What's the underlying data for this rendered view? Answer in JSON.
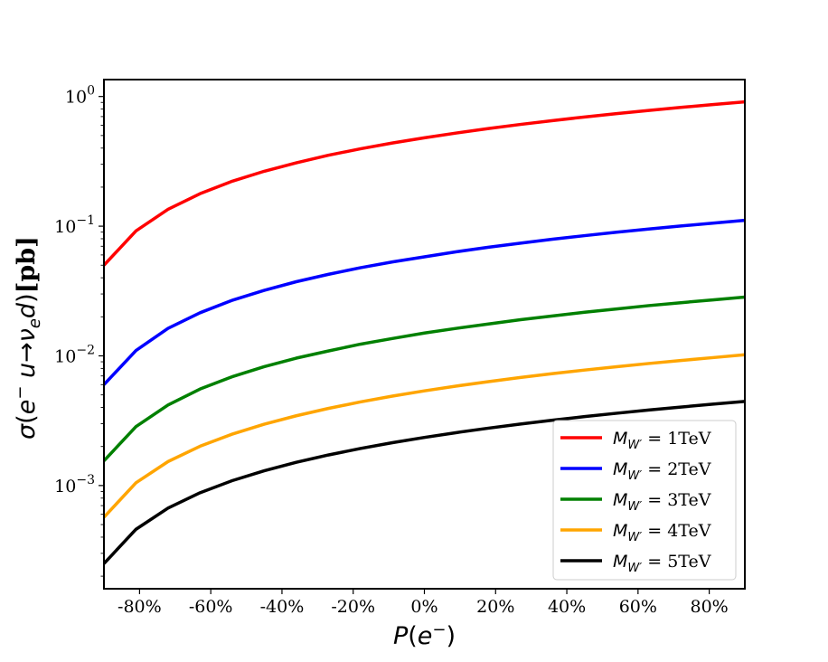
{
  "chart_data": {
    "type": "line",
    "title": "",
    "xlabel": "P(e⁻)",
    "ylabel": "σ(e⁻ u→νₑ d)[pb]",
    "yscale": "log",
    "xlim": [
      -90,
      90
    ],
    "ylim": [
      0.00016,
      1.35
    ],
    "x_ticks": [
      -80,
      -60,
      -40,
      -20,
      0,
      20,
      40,
      60,
      80
    ],
    "x_tick_labels": [
      "-80%",
      "-60%",
      "-40%",
      "-20%",
      "0%",
      "20%",
      "40%",
      "60%",
      "80%"
    ],
    "y_ticks": [
      0.001,
      0.01,
      0.1,
      1
    ],
    "y_tick_labels": [
      {
        "base": "10",
        "exp": "−3"
      },
      {
        "base": "10",
        "exp": "−2"
      },
      {
        "base": "10",
        "exp": "−1"
      },
      {
        "base": "10",
        "exp": "0"
      }
    ],
    "legend_position": "lower-right",
    "x": [
      -90,
      -81,
      -72,
      -63,
      -54,
      -45,
      -36,
      -27,
      -18,
      -9,
      0,
      9,
      18,
      27,
      36,
      45,
      54,
      63,
      72,
      81,
      90
    ],
    "series": [
      {
        "name": "M_W′ = 1TeV",
        "legend_main": "M",
        "legend_sub": "W′",
        "legend_value": " = 1TeV",
        "color": "#ff0000",
        "values": [
          0.05,
          0.092,
          0.135,
          0.178,
          0.222,
          0.265,
          0.308,
          0.352,
          0.395,
          0.438,
          0.48,
          0.523,
          0.566,
          0.609,
          0.652,
          0.695,
          0.738,
          0.781,
          0.824,
          0.867,
          0.91
        ]
      },
      {
        "name": "M_W′ = 2TeV",
        "legend_main": "M",
        "legend_sub": "W′",
        "legend_value": " = 2TeV",
        "color": "#0000ff",
        "values": [
          0.006,
          0.011,
          0.0163,
          0.0215,
          0.0268,
          0.032,
          0.0373,
          0.0425,
          0.0478,
          0.053,
          0.058,
          0.0635,
          0.0688,
          0.074,
          0.0793,
          0.0845,
          0.0898,
          0.095,
          0.1003,
          0.1055,
          0.111
        ]
      },
      {
        "name": "M_W′ = 3TeV",
        "legend_main": "M",
        "legend_sub": "W′",
        "legend_value": " = 3TeV",
        "color": "#008000",
        "values": [
          0.00155,
          0.00285,
          0.00418,
          0.00555,
          0.0069,
          0.00825,
          0.0096,
          0.0109,
          0.0123,
          0.0136,
          0.015,
          0.0163,
          0.0176,
          0.019,
          0.0203,
          0.0217,
          0.023,
          0.0244,
          0.0257,
          0.027,
          0.0284
        ]
      },
      {
        "name": "M_W′ = 4TeV",
        "legend_main": "M",
        "legend_sub": "W′",
        "legend_value": " = 4TeV",
        "color": "#ffa500",
        "values": [
          0.00057,
          0.00105,
          0.00153,
          0.00201,
          0.00249,
          0.00297,
          0.00345,
          0.00393,
          0.00441,
          0.00489,
          0.00537,
          0.00585,
          0.00633,
          0.00681,
          0.00729,
          0.00777,
          0.00825,
          0.00873,
          0.00921,
          0.00969,
          0.0102
        ]
      },
      {
        "name": "M_W′ = 5TeV",
        "legend_main": "M",
        "legend_sub": "W′",
        "legend_value": " = 5TeV",
        "color": "#000000",
        "values": [
          0.00025,
          0.00046,
          0.00067,
          0.00088,
          0.00109,
          0.0013,
          0.00151,
          0.00172,
          0.00193,
          0.00214,
          0.00235,
          0.00256,
          0.00277,
          0.00298,
          0.00319,
          0.0034,
          0.00361,
          0.00382,
          0.00403,
          0.00424,
          0.00445
        ]
      }
    ]
  }
}
